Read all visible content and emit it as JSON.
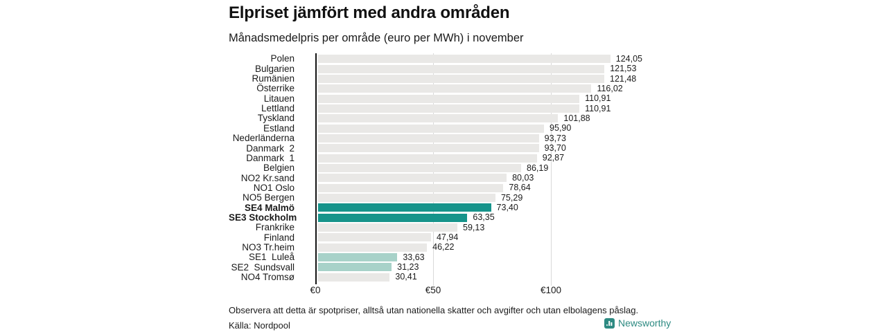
{
  "title": "Elpriset jämfört med andra områden",
  "subtitle": "Månadsmedelpris per område (euro per MWh) i november",
  "chart_data": {
    "type": "bar",
    "orientation": "horizontal",
    "title": "Elpriset jämfört med andra områden",
    "subtitle": "Månadsmedelpris per område (euro per MWh) i november",
    "unit": "euro per MWh",
    "xlim": [
      0,
      130
    ],
    "grid": true,
    "x_ticks": [
      {
        "label": "€0",
        "value": 0
      },
      {
        "label": "€50",
        "value": 50
      },
      {
        "label": "€100",
        "value": 100
      }
    ],
    "rows": [
      {
        "label": "Polen",
        "value": 124.05,
        "display": "124,05",
        "style": "default",
        "bold": false
      },
      {
        "label": "Bulgarien",
        "value": 121.53,
        "display": "121,53",
        "style": "default",
        "bold": false
      },
      {
        "label": "Rumänien",
        "value": 121.48,
        "display": "121,48",
        "style": "default",
        "bold": false
      },
      {
        "label": "Österrike",
        "value": 116.02,
        "display": "116,02",
        "style": "default",
        "bold": false
      },
      {
        "label": "Litauen",
        "value": 110.91,
        "display": "110,91",
        "style": "default",
        "bold": false
      },
      {
        "label": "Lettland",
        "value": 110.91,
        "display": "110,91",
        "style": "default",
        "bold": false
      },
      {
        "label": "Tyskland",
        "value": 101.88,
        "display": "101,88",
        "style": "default",
        "bold": false
      },
      {
        "label": "Estland",
        "value": 95.9,
        "display": "95,90",
        "style": "default",
        "bold": false
      },
      {
        "label": "Nederländerna",
        "value": 93.73,
        "display": "93,73",
        "style": "default",
        "bold": false
      },
      {
        "label": "Danmark  2",
        "value": 93.7,
        "display": "93,70",
        "style": "default",
        "bold": false
      },
      {
        "label": "Danmark  1",
        "value": 92.87,
        "display": "92,87",
        "style": "default",
        "bold": false
      },
      {
        "label": "Belgien",
        "value": 86.19,
        "display": "86,19",
        "style": "default",
        "bold": false
      },
      {
        "label": "NO2 Kr.sand",
        "value": 80.03,
        "display": "80,03",
        "style": "default",
        "bold": false
      },
      {
        "label": "NO1 Oslo",
        "value": 78.64,
        "display": "78,64",
        "style": "default",
        "bold": false
      },
      {
        "label": "NO5 Bergen",
        "value": 75.29,
        "display": "75,29",
        "style": "default",
        "bold": false
      },
      {
        "label": "SE4 Malmö",
        "value": 73.4,
        "display": "73,40",
        "style": "dark",
        "bold": true
      },
      {
        "label": "SE3 Stockholm",
        "value": 63.35,
        "display": "63,35",
        "style": "dark",
        "bold": true
      },
      {
        "label": "Frankrike",
        "value": 59.13,
        "display": "59,13",
        "style": "default",
        "bold": false
      },
      {
        "label": "Finland",
        "value": 47.94,
        "display": "47,94",
        "style": "default",
        "bold": false
      },
      {
        "label": "NO3 Tr.heim",
        "value": 46.22,
        "display": "46,22",
        "style": "default",
        "bold": false
      },
      {
        "label": "SE1  Luleå",
        "value": 33.63,
        "display": "33,63",
        "style": "light",
        "bold": false
      },
      {
        "label": "SE2  Sundsvall",
        "value": 31.23,
        "display": "31,23",
        "style": "light",
        "bold": false
      },
      {
        "label": "NO4 Tromsø",
        "value": 30.41,
        "display": "30,41",
        "style": "default",
        "bold": false
      }
    ],
    "colors": {
      "default": "#e9e8e6",
      "dark": "#16948b",
      "light": "#a8d2c9",
      "gridline": "#d9d9d9",
      "axis": "#141414"
    },
    "legend_position": "none"
  },
  "footer": {
    "note": "Observera att detta är spotpriser, alltså utan nationella skatter och avgifter och utan elbolagens påslag.",
    "source": "Källa: Nordpool",
    "brand": "Newsworthy",
    "brand_color": "#2d8a82"
  }
}
